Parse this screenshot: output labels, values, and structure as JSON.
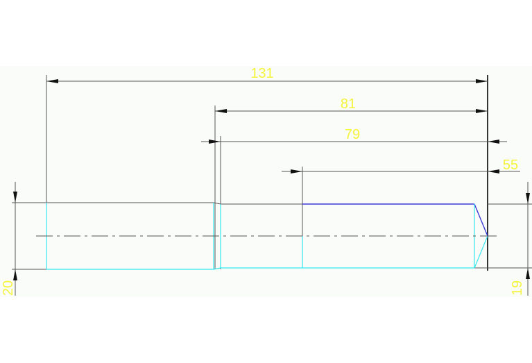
{
  "drawing": {
    "background_color": "#fafcfa",
    "dimension_text_color": "#f4f43a",
    "outline_color_cyan": "#33e8ee",
    "outline_color_blue": "#3a3ad6",
    "dimensions": {
      "overall_length": "131",
      "length_81": "81",
      "length_79": "79",
      "length_55": "55",
      "left_diameter": "20",
      "right_diameter": "19"
    }
  }
}
